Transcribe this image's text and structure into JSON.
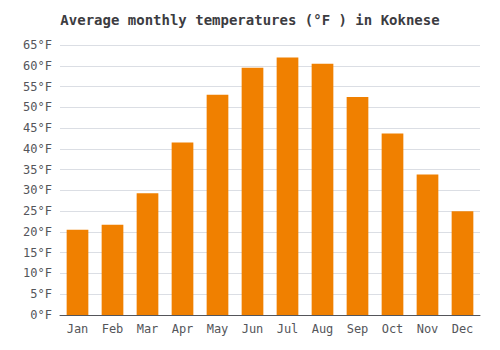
{
  "chart_data": {
    "type": "bar",
    "title": "Average monthly temperatures (°F ) in Koknese",
    "categories": [
      "Jan",
      "Feb",
      "Mar",
      "Apr",
      "May",
      "Jun",
      "Jul",
      "Aug",
      "Sep",
      "Oct",
      "Nov",
      "Dec"
    ],
    "values": [
      20.5,
      21.7,
      29.3,
      41.5,
      53.0,
      59.5,
      62.0,
      60.5,
      52.5,
      43.7,
      33.8,
      25.0
    ],
    "color": "#F08000",
    "ylim": [
      0,
      65
    ],
    "yticks": [
      {
        "value": 0,
        "label": "0°F"
      },
      {
        "value": 5,
        "label": "5°F"
      },
      {
        "value": 10,
        "label": "10°F"
      },
      {
        "value": 15,
        "label": "15°F"
      },
      {
        "value": 20,
        "label": "20°F"
      },
      {
        "value": 25,
        "label": "25°F"
      },
      {
        "value": 30,
        "label": "30°F"
      },
      {
        "value": 35,
        "label": "35°F"
      },
      {
        "value": 40,
        "label": "40°F"
      },
      {
        "value": 45,
        "label": "45°F"
      },
      {
        "value": 50,
        "label": "50°F"
      },
      {
        "value": 55,
        "label": "55°F"
      },
      {
        "value": 60,
        "label": "60°F"
      },
      {
        "value": 65,
        "label": "65°F"
      }
    ],
    "grid": true
  }
}
